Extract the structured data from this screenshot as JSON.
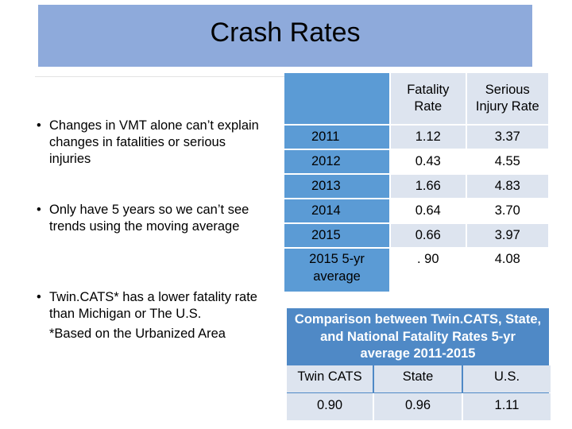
{
  "slide": {
    "title": "Crash Rates"
  },
  "bullets": {
    "items": [
      "Changes in VMT alone can’t explain changes in fatalities or serious injuries",
      "Only have 5 years so we can’t see trends using the moving average",
      "Twin.CATS* has a lower fatality rate than Michigan or The U.S."
    ],
    "footnote": "*Based on the Urbanized Area",
    "marker": "•"
  },
  "rates_table": {
    "headers": [
      "",
      "Fatality Rate",
      "Serious Injury Rate"
    ],
    "header_lines": [
      [
        "Fatality",
        "Rate"
      ],
      [
        "Serious",
        "Injury Rate"
      ]
    ],
    "rows": [
      {
        "year": "2011",
        "fatality": "1.12",
        "injury": "3.37"
      },
      {
        "year": "2012",
        "fatality": "0.43",
        "injury": "4.55"
      },
      {
        "year": "2013",
        "fatality": "1.66",
        "injury": "4.83"
      },
      {
        "year": "2014",
        "fatality": "0.64",
        "injury": "3.70"
      },
      {
        "year": "2015",
        "fatality": "0.66",
        "injury": "3.97"
      }
    ],
    "average": {
      "label_lines": [
        "2015 5-yr",
        "average"
      ],
      "fatality": ". 90",
      "injury": "4.08"
    }
  },
  "comparison": {
    "title_lines": [
      "Comparison between Twin.CATS, State,",
      "and National Fatality Rates 5-yr",
      "average 2011-2015"
    ],
    "headers": [
      "Twin CATS",
      "State",
      "U.S."
    ],
    "values": [
      "0.90",
      "0.96",
      "1.11"
    ]
  },
  "colors": {
    "title_bg": "#8eaadb",
    "header_blue": "#5b9bd5",
    "cell_light": "#dde4ef",
    "compare_blue": "#4f89c6"
  }
}
